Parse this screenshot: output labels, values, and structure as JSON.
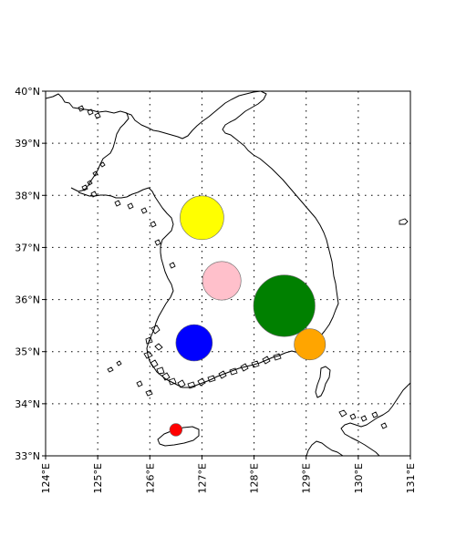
{
  "map": {
    "extent": {
      "lon": [
        124,
        131
      ],
      "lat": [
        33,
        40
      ]
    },
    "lon_ticks": [
      {
        "value": 124,
        "label": "124°E"
      },
      {
        "value": 125,
        "label": "125°E"
      },
      {
        "value": 126,
        "label": "126°E"
      },
      {
        "value": 127,
        "label": "127°E"
      },
      {
        "value": 128,
        "label": "128°E"
      },
      {
        "value": 129,
        "label": "129°E"
      },
      {
        "value": 130,
        "label": "130°E"
      },
      {
        "value": 131,
        "label": "131°E"
      }
    ],
    "lat_ticks": [
      {
        "value": 40,
        "label": "40°N"
      },
      {
        "value": 39,
        "label": "39°N"
      },
      {
        "value": 38,
        "label": "38°N"
      },
      {
        "value": 37,
        "label": "37°N"
      },
      {
        "value": 36,
        "label": "36°N"
      },
      {
        "value": 35,
        "label": "35°N"
      },
      {
        "value": 34,
        "label": "34°N"
      },
      {
        "value": 33,
        "label": "33°N"
      }
    ],
    "gridlines": true,
    "markers": [
      {
        "name": "yellow",
        "lon": 127.0,
        "lat": 37.57,
        "radius_deg": 0.42,
        "color": "#ffff00"
      },
      {
        "name": "pink",
        "lon": 127.38,
        "lat": 36.36,
        "radius_deg": 0.37,
        "color": "#ffc0cb"
      },
      {
        "name": "green",
        "lon": 128.58,
        "lat": 35.88,
        "radius_deg": 0.59,
        "color": "#008000"
      },
      {
        "name": "orange",
        "lon": 129.07,
        "lat": 35.14,
        "radius_deg": 0.3,
        "color": "#ffa500"
      },
      {
        "name": "blue",
        "lon": 126.85,
        "lat": 35.17,
        "radius_deg": 0.35,
        "color": "#0000ff"
      },
      {
        "name": "red",
        "lon": 126.5,
        "lat": 33.5,
        "radius_deg": 0.12,
        "color": "#ff0000"
      }
    ]
  }
}
